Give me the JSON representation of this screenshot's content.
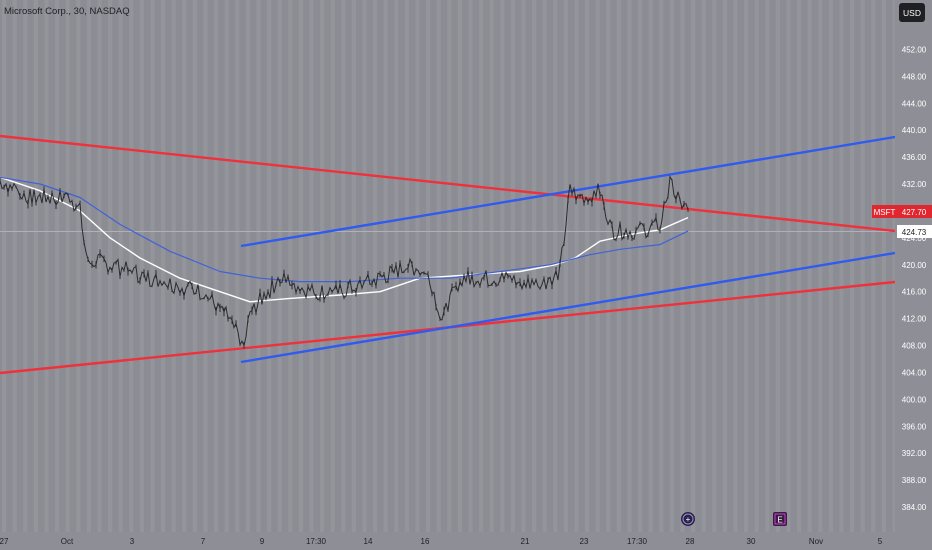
{
  "header": {
    "symbol_title": "Microsoft Corp., 30, NASDAQ"
  },
  "currency_button": {
    "label": "USD"
  },
  "price_axis": {
    "ticks": [
      "452.00",
      "448.00",
      "444.00",
      "440.00",
      "436.00",
      "432.00",
      "428.00",
      "424.00",
      "420.00",
      "416.00",
      "412.00",
      "408.00",
      "404.00",
      "400.00",
      "396.00",
      "392.00",
      "388.00",
      "384.00"
    ]
  },
  "time_axis": {
    "labels": [
      "27",
      "Oct",
      "3",
      "7",
      "9",
      "17:30",
      "14",
      "16",
      "21",
      "23",
      "17:30",
      "28",
      "30",
      "Nov",
      "5"
    ]
  },
  "price_tags": {
    "symbol": "MSFT",
    "last_price": "427.70",
    "marker_price": "424.73"
  },
  "events": {
    "earnings_letter": "E"
  },
  "colors": {
    "background": "#8c8c94",
    "band_light": "#9b9aa0",
    "candles": "#2b2b2e",
    "ma_fast": "#ffffff",
    "ma_slow": "#3f63d8",
    "trend_red": "#f0303a",
    "trend_blue": "#2f5bf0",
    "tag_red": "#e0262e"
  },
  "chart_data": {
    "type": "line",
    "title": "",
    "xlabel": "",
    "ylabel": "",
    "ylim": [
      382,
      455
    ],
    "series": [
      {
        "name": "MSFT",
        "x": [
          "Sep 27",
          "Oct 1",
          "Oct 3",
          "Oct 4",
          "Oct 7",
          "Oct 8",
          "Oct 9",
          "Oct 14",
          "Oct 15",
          "Oct 16",
          "Oct 21",
          "Oct 22",
          "Oct 23",
          "Oct 24",
          "Oct 25"
        ],
        "values": [
          432.5,
          428,
          420,
          418,
          416,
          407,
          414,
          420,
          416,
          414,
          420,
          431,
          431,
          425,
          427.7
        ]
      },
      {
        "name": "",
        "x": [
          "Sep 27",
          "Oct 3",
          "Oct 8",
          "Oct 16",
          "Oct 22",
          "Oct 25"
        ],
        "values": [
          433,
          428,
          415,
          418,
          423,
          427
        ]
      },
      {
        "name": "",
        "x": [
          "Sep 27",
          "Oct 3",
          "Oct 8",
          "Oct 16",
          "Oct 22",
          "Oct 25"
        ],
        "values": [
          433,
          429,
          419,
          418,
          421,
          425
        ]
      }
    ]
  }
}
